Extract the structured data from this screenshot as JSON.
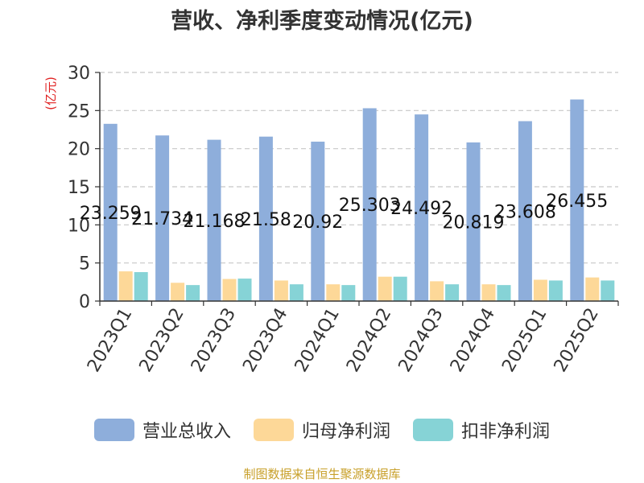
{
  "chart_data": {
    "type": "bar",
    "title": "营收、净利季度变动情况(亿元)",
    "ylabel": "(亿元)",
    "categories": [
      "2023Q1",
      "2023Q2",
      "2023Q3",
      "2023Q4",
      "2024Q1",
      "2024Q2",
      "2024Q3",
      "2024Q4",
      "2025Q1",
      "2025Q2"
    ],
    "series": [
      {
        "name": "营业总收入",
        "color": "#8eaedb",
        "values": [
          23.259,
          21.734,
          21.168,
          21.58,
          20.92,
          25.303,
          24.492,
          20.819,
          23.608,
          26.455
        ],
        "labels": [
          "23.259",
          "21.734",
          "21.168",
          "21.58",
          "20.92",
          "25.303",
          "24.492",
          "20.819",
          "23.608",
          "26.455"
        ]
      },
      {
        "name": "归母净利润",
        "color": "#fdd898",
        "values": [
          3.9,
          2.4,
          2.9,
          2.7,
          2.2,
          3.2,
          2.6,
          2.2,
          2.8,
          3.1
        ]
      },
      {
        "name": "扣非净利润",
        "color": "#86d3d6",
        "values": [
          3.8,
          2.1,
          2.95,
          2.2,
          2.1,
          3.2,
          2.2,
          2.1,
          2.7,
          2.7
        ]
      }
    ],
    "ylim": [
      0,
      30
    ],
    "yticks": [
      0,
      5,
      10,
      15,
      20,
      25,
      30
    ],
    "grid": true,
    "legend": "bottom"
  },
  "footer": {
    "source": "制图数据来自恒生聚源数据库"
  }
}
